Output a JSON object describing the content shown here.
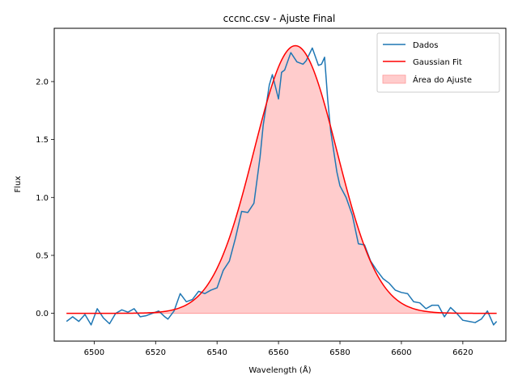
{
  "chart_data": {
    "type": "line",
    "title": "cccnc.csv - Ajuste Final",
    "xlabel": "Wavelength (Å)",
    "ylabel": "Flux",
    "xlim": [
      6487,
      6634
    ],
    "ylim": [
      -0.24,
      2.46
    ],
    "x_ticks": [
      6500,
      6520,
      6540,
      6560,
      6580,
      6600,
      6620
    ],
    "y_ticks": [
      0.0,
      0.5,
      1.0,
      1.5,
      2.0
    ],
    "y_tick_labels": [
      "0.0",
      "0.5",
      "1.0",
      "1.5",
      "2.0"
    ],
    "grid": false,
    "legend_position": "top-right",
    "colors": {
      "dados": "#1f77b4",
      "fit": "#ff0000",
      "area": "#ff9999"
    },
    "series": [
      {
        "name": "Dados",
        "style": "line",
        "x": [
          6491,
          6493,
          6495,
          6497,
          6499,
          6501,
          6503,
          6505,
          6507,
          6509,
          6511,
          6513,
          6515,
          6517,
          6519,
          6521,
          6523,
          6524,
          6526,
          6528,
          6530,
          6532,
          6534,
          6536,
          6538,
          6540,
          6542,
          6544,
          6546,
          6548,
          6550,
          6552,
          6554,
          6555,
          6557,
          6558,
          6560,
          6561,
          6562,
          6564,
          6566,
          6568,
          6569,
          6571,
          6573,
          6574,
          6575,
          6576,
          6577,
          6579,
          6580,
          6582,
          6584,
          6586,
          6588,
          6590,
          6592,
          6594,
          6596,
          6598,
          6600,
          6602,
          6604,
          6606,
          6608,
          6610,
          6612,
          6614,
          6616,
          6618,
          6620,
          6622,
          6624,
          6626,
          6628,
          6630,
          6631
        ],
        "y": [
          -0.07,
          -0.03,
          -0.07,
          -0.01,
          -0.1,
          0.04,
          -0.04,
          -0.09,
          0.0,
          0.03,
          0.01,
          0.04,
          -0.03,
          -0.02,
          0.0,
          0.02,
          -0.03,
          -0.05,
          0.02,
          0.17,
          0.1,
          0.12,
          0.19,
          0.17,
          0.2,
          0.22,
          0.37,
          0.45,
          0.65,
          0.88,
          0.87,
          0.95,
          1.35,
          1.62,
          1.97,
          2.06,
          1.85,
          2.08,
          2.1,
          2.25,
          2.17,
          2.15,
          2.18,
          2.29,
          2.14,
          2.15,
          2.21,
          1.85,
          1.57,
          1.22,
          1.1,
          1.0,
          0.85,
          0.6,
          0.59,
          0.45,
          0.37,
          0.3,
          0.26,
          0.2,
          0.18,
          0.17,
          0.1,
          0.09,
          0.04,
          0.07,
          0.07,
          -0.03,
          0.05,
          0.0,
          -0.06,
          -0.07,
          -0.08,
          -0.05,
          0.02,
          -0.1,
          -0.07
        ]
      },
      {
        "name": "Gaussian Fit",
        "style": "line",
        "model": "gaussian",
        "amplitude": 2.31,
        "center": 6565.5,
        "sigma": 13.5,
        "x_range": [
          6491,
          6631
        ]
      },
      {
        "name": "Área do Ajuste",
        "style": "area",
        "fill_of": "Gaussian Fit"
      }
    ]
  }
}
